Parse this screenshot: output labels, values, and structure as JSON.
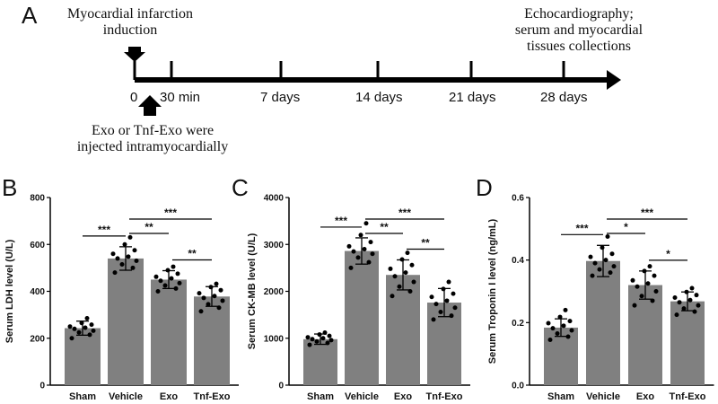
{
  "panel_a": {
    "letter": "A",
    "mi_label_line1": "Myocardial infarction",
    "mi_label_line2": "induction",
    "echo_line1": "Echocardiography;",
    "echo_line2": "serum and myocardial",
    "echo_line3": "tissues collections",
    "injection_line1": "Exo or Tnf-Exo were",
    "injection_line2": "injected intramyocardially",
    "timeline_labels": [
      "0",
      "30 min",
      "7 days",
      "14 days",
      "21 days",
      "28 days"
    ]
  },
  "colors": {
    "bar": "#808080",
    "dot": "#000000",
    "axis": "#000000"
  },
  "chart_data": [
    {
      "type": "bar",
      "panel_letter": "B",
      "ylabel": "Serum LDH level (U/L)",
      "categories": [
        "Sham",
        "Vehicle",
        "Exo",
        "Tnf-Exo"
      ],
      "values": [
        243,
        540,
        450,
        378
      ],
      "errors": [
        30,
        50,
        38,
        42
      ],
      "points": [
        [
          200,
          215,
          225,
          232,
          240,
          245,
          250,
          258,
          265,
          285
        ],
        [
          480,
          500,
          515,
          530,
          540,
          548,
          560,
          575,
          600,
          630
        ],
        [
          400,
          412,
          425,
          435,
          445,
          455,
          462,
          475,
          490,
          505
        ],
        [
          315,
          330,
          345,
          360,
          372,
          380,
          392,
          405,
          418,
          432
        ]
      ],
      "ylim": [
        0,
        800
      ],
      "yticks": [
        0,
        200,
        400,
        600,
        800
      ],
      "significance": [
        {
          "from": 0,
          "to": 1,
          "label": "***",
          "level": 0
        },
        {
          "from": 1,
          "to": 2,
          "label": "**",
          "level": 0
        },
        {
          "from": 1,
          "to": 3,
          "label": "***",
          "level": 1
        },
        {
          "from": 2,
          "to": 3,
          "label": "**",
          "level": 0
        }
      ]
    },
    {
      "type": "bar",
      "panel_letter": "C",
      "ylabel": "Serum CK-MB level (U/L)",
      "categories": [
        "Sham",
        "Vehicle",
        "Exo",
        "Tnf-Exo"
      ],
      "values": [
        980,
        2860,
        2350,
        1760
      ],
      "errors": [
        110,
        280,
        320,
        300
      ],
      "points": [
        [
          860,
          900,
          930,
          960,
          980,
          1000,
          1020,
          1050,
          1080,
          1120
        ],
        [
          2500,
          2620,
          2720,
          2800,
          2850,
          2900,
          2960,
          3050,
          3200,
          3450
        ],
        [
          1900,
          2000,
          2100,
          2200,
          2320,
          2400,
          2480,
          2560,
          2680,
          2820
        ],
        [
          1400,
          1480,
          1560,
          1650,
          1730,
          1800,
          1880,
          1950,
          2050,
          2200
        ]
      ],
      "ylim": [
        0,
        4000
      ],
      "yticks": [
        0,
        1000,
        2000,
        3000,
        4000
      ],
      "significance": [
        {
          "from": 0,
          "to": 1,
          "label": "***",
          "level": 0
        },
        {
          "from": 1,
          "to": 2,
          "label": "**",
          "level": 0
        },
        {
          "from": 1,
          "to": 3,
          "label": "***",
          "level": 1
        },
        {
          "from": 2,
          "to": 3,
          "label": "**",
          "level": 0
        }
      ]
    },
    {
      "type": "bar",
      "panel_letter": "D",
      "ylabel": "Serum Troponin I level (ng/mL)",
      "categories": [
        "Sham",
        "Vehicle",
        "Exo",
        "Tnf-Exo"
      ],
      "values": [
        0.184,
        0.397,
        0.32,
        0.268
      ],
      "errors": [
        0.028,
        0.05,
        0.045,
        0.03
      ],
      "points": [
        [
          0.145,
          0.155,
          0.165,
          0.175,
          0.182,
          0.19,
          0.198,
          0.205,
          0.218,
          0.24
        ],
        [
          0.35,
          0.36,
          0.37,
          0.38,
          0.39,
          0.4,
          0.41,
          0.42,
          0.44,
          0.475
        ],
        [
          0.255,
          0.27,
          0.285,
          0.3,
          0.315,
          0.325,
          0.335,
          0.35,
          0.365,
          0.38
        ],
        [
          0.225,
          0.235,
          0.245,
          0.255,
          0.265,
          0.272,
          0.28,
          0.288,
          0.298,
          0.31
        ]
      ],
      "ylim": [
        0,
        0.6
      ],
      "yticks": [
        0.0,
        0.2,
        0.4,
        0.6
      ],
      "significance": [
        {
          "from": 0,
          "to": 1,
          "label": "***",
          "level": 0
        },
        {
          "from": 1,
          "to": 2,
          "label": "*",
          "level": 0
        },
        {
          "from": 1,
          "to": 3,
          "label": "***",
          "level": 1
        },
        {
          "from": 2,
          "to": 3,
          "label": "*",
          "level": 0
        }
      ]
    }
  ]
}
